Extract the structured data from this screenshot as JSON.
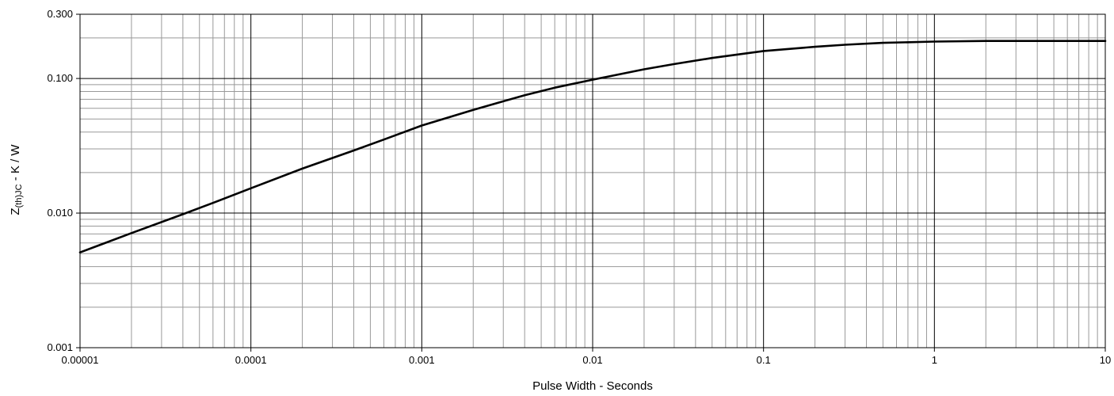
{
  "chart_data": {
    "type": "line",
    "title": "",
    "xlabel": "Pulse Width - Seconds",
    "ylabel": {
      "main": "Z",
      "subscript": "(th)JC",
      "rest": " - K / W"
    },
    "xscale": "log",
    "yscale": "log",
    "xlim": [
      1e-05,
      10
    ],
    "ylim": [
      0.001,
      0.3
    ],
    "grid": true,
    "legend": "none",
    "x_ticks": [
      {
        "value": 1e-05,
        "label": "0.00001"
      },
      {
        "value": 0.0001,
        "label": "0.0001"
      },
      {
        "value": 0.001,
        "label": "0.001"
      },
      {
        "value": 0.01,
        "label": "0.01"
      },
      {
        "value": 0.1,
        "label": "0.1"
      },
      {
        "value": 1,
        "label": "1"
      },
      {
        "value": 10,
        "label": "10"
      }
    ],
    "y_ticks": [
      {
        "value": 0.001,
        "label": "0.001"
      },
      {
        "value": 0.01,
        "label": "0.010"
      },
      {
        "value": 0.1,
        "label": "0.100"
      },
      {
        "value": 0.3,
        "label": "0.300"
      }
    ],
    "line_color": "#000000",
    "grid_major_color": "#000000",
    "grid_minor_color": "#999999",
    "series": [
      {
        "x": [
          1e-05,
          2e-05,
          4e-05,
          6e-05,
          0.0001,
          0.0002,
          0.0004,
          0.0006,
          0.001,
          0.002,
          0.004,
          0.006,
          0.01,
          0.02,
          0.03,
          0.05,
          0.1,
          0.2,
          0.3,
          0.5,
          1,
          2,
          5,
          10
        ],
        "y": [
          0.0051,
          0.0071,
          0.0098,
          0.0119,
          0.0153,
          0.0214,
          0.0292,
          0.0352,
          0.0447,
          0.0585,
          0.0751,
          0.0855,
          0.098,
          0.117,
          0.128,
          0.142,
          0.16,
          0.172,
          0.178,
          0.184,
          0.188,
          0.19,
          0.19,
          0.19
        ]
      }
    ]
  }
}
